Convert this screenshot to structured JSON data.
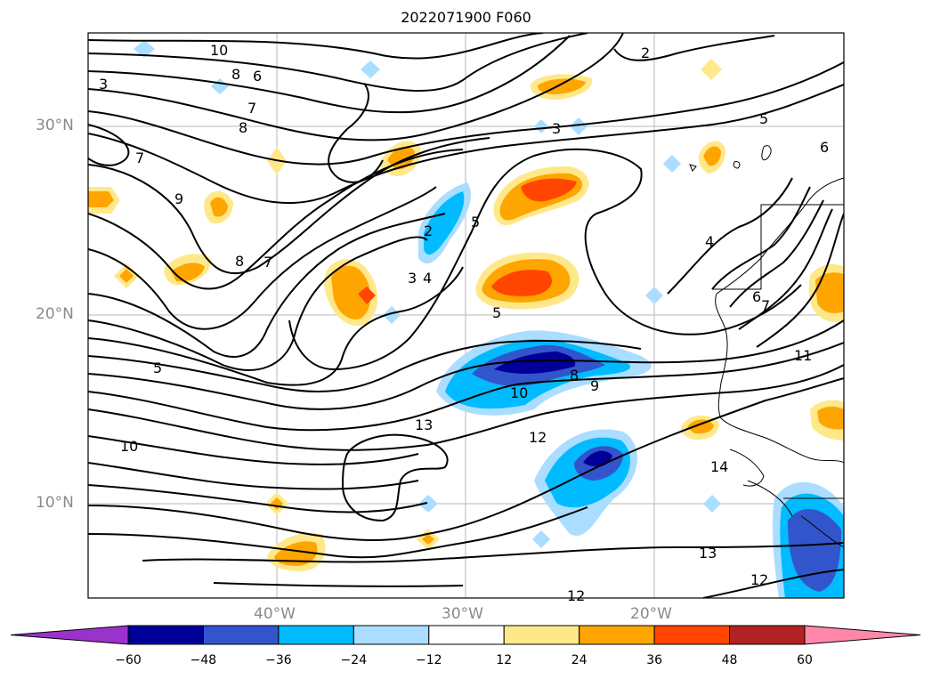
{
  "title": "2022071900 F060",
  "lat_labels": [
    "30°N",
    "20°N",
    "10°N"
  ],
  "lon_labels": [
    "40°W",
    "30°W",
    "20°W"
  ],
  "contour_labels": [
    "10",
    "8",
    "6",
    "7",
    "8",
    "7",
    "9",
    "8",
    "7",
    "5",
    "6",
    "10",
    "2",
    "3",
    "5",
    "3",
    "4",
    "2",
    "5",
    "4",
    "6",
    "7",
    "11",
    "8",
    "9",
    "10",
    "13",
    "12",
    "14",
    "13",
    "12",
    "12",
    "3",
    "5"
  ],
  "colorbar": {
    "ticks": [
      "−60",
      "−48",
      "−36",
      "−24",
      "−12",
      "12",
      "24",
      "36",
      "48",
      "60"
    ],
    "colors": [
      "#9a33cc",
      "#000099",
      "#3355cc",
      "#00bbff",
      "#aaddff",
      "#ffffff",
      "#ffe88a",
      "#ffa500",
      "#ff4500",
      "#b22222",
      "#ff88aa"
    ]
  }
}
